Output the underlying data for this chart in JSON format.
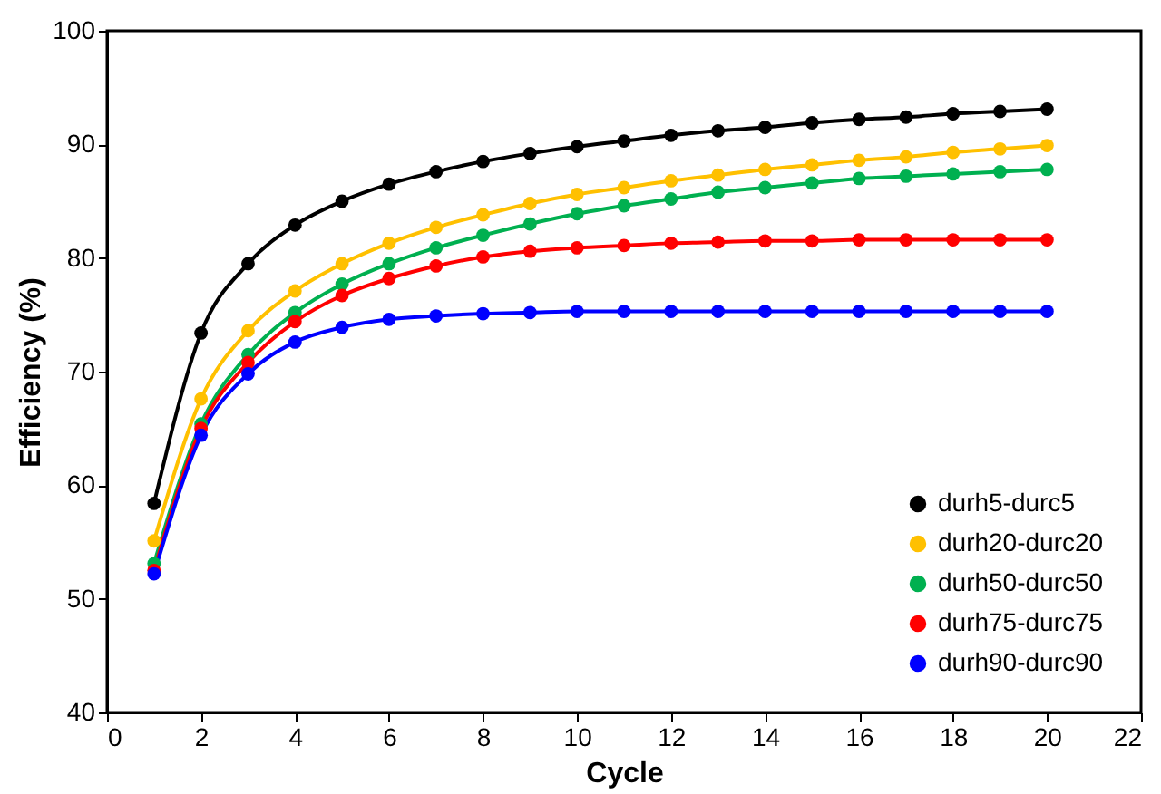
{
  "chart_data": {
    "type": "line",
    "xlabel": "Cycle",
    "ylabel": "Efficiency (%)",
    "x": [
      1,
      2,
      3,
      4,
      5,
      6,
      7,
      8,
      9,
      10,
      11,
      12,
      13,
      14,
      15,
      16,
      17,
      18,
      19,
      20
    ],
    "series": [
      {
        "name": "durh5-durc5",
        "color": "#000000",
        "values": [
          58.4,
          73.4,
          79.5,
          82.9,
          85.0,
          86.5,
          87.6,
          88.5,
          89.2,
          89.8,
          90.3,
          90.8,
          91.2,
          91.5,
          91.9,
          92.2,
          92.4,
          92.7,
          92.9,
          93.1
        ]
      },
      {
        "name": "durh20-durc20",
        "color": "#ffc000",
        "values": [
          55.1,
          67.6,
          73.6,
          77.1,
          79.5,
          81.3,
          82.7,
          83.8,
          84.8,
          85.6,
          86.2,
          86.8,
          87.3,
          87.8,
          88.2,
          88.6,
          88.9,
          89.3,
          89.6,
          89.9
        ]
      },
      {
        "name": "durh50-durc50",
        "color": "#00b050",
        "values": [
          53.1,
          65.4,
          71.5,
          75.2,
          77.7,
          79.5,
          80.9,
          82.0,
          83.0,
          83.9,
          84.6,
          85.2,
          85.8,
          86.2,
          86.6,
          87.0,
          87.2,
          87.4,
          87.6,
          87.8
        ]
      },
      {
        "name": "durh75-durc75",
        "color": "#ff0000",
        "values": [
          52.5,
          65.0,
          70.8,
          74.4,
          76.7,
          78.2,
          79.3,
          80.1,
          80.6,
          80.9,
          81.1,
          81.3,
          81.4,
          81.5,
          81.5,
          81.6,
          81.6,
          81.6,
          81.6,
          81.6
        ]
      },
      {
        "name": "durh90-durc90",
        "color": "#0000ff",
        "values": [
          52.2,
          64.4,
          69.8,
          72.6,
          73.9,
          74.6,
          74.9,
          75.1,
          75.2,
          75.3,
          75.3,
          75.3,
          75.3,
          75.3,
          75.3,
          75.3,
          75.3,
          75.3,
          75.3,
          75.3
        ]
      }
    ],
    "xlim": [
      0,
      22
    ],
    "xticks": [
      0,
      2,
      4,
      6,
      8,
      10,
      12,
      14,
      16,
      18,
      20,
      22
    ],
    "ylim": [
      40,
      100
    ],
    "yticks": [
      40,
      50,
      60,
      70,
      80,
      90,
      100
    ],
    "grid": false,
    "legend": "bottom right",
    "marker": "circle",
    "line_style": "solid"
  }
}
